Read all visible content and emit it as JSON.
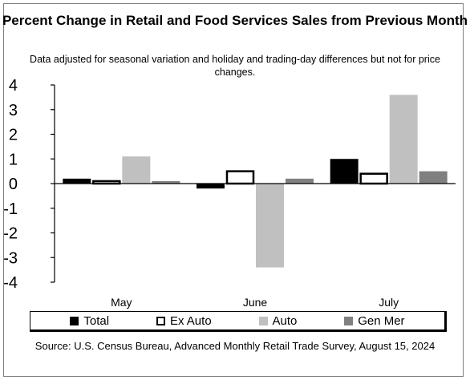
{
  "chart_data": {
    "type": "bar",
    "title": "Percent Change in Retail and Food Services Sales from Previous Month",
    "subtitle": "Data adjusted for seasonal variation and holiday and trading-day differences but not for price changes.",
    "source": "Source: U.S. Census Bureau, Advanced Monthly Retail Trade Survey, August 15, 2024",
    "categories": [
      "May",
      "June",
      "July"
    ],
    "series": [
      {
        "name": "Total",
        "values": [
          0.2,
          -0.2,
          1.0
        ],
        "color": "#000000",
        "style": "filled"
      },
      {
        "name": "Ex Auto",
        "values": [
          0.1,
          0.5,
          0.4
        ],
        "color": "#000000",
        "style": "outline"
      },
      {
        "name": "Auto",
        "values": [
          1.1,
          -3.4,
          3.6
        ],
        "color": "#c0c0c0",
        "style": "filled"
      },
      {
        "name": "Gen Mer",
        "values": [
          0.1,
          0.2,
          0.5
        ],
        "color": "#808080",
        "style": "filled"
      }
    ],
    "ylim": [
      -4,
      4
    ],
    "yticks": [
      "4",
      "3",
      "2",
      "1",
      "0",
      "-1",
      "-2",
      "-3",
      "-4"
    ],
    "xlabel": "",
    "ylabel": "",
    "grid": false,
    "legend_position": "bottom"
  }
}
